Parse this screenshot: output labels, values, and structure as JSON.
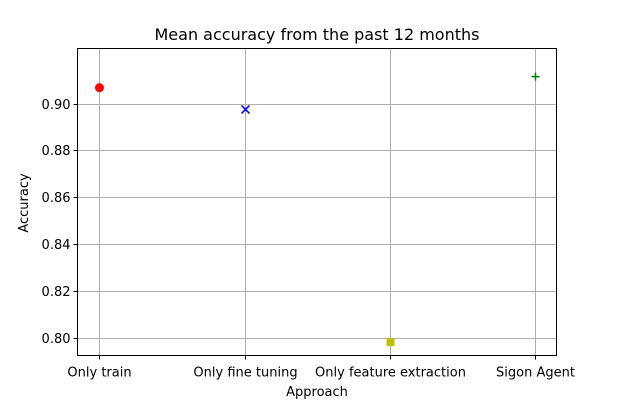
{
  "chart_data": {
    "type": "scatter",
    "title": "Mean accuracy from the past 12 months",
    "xlabel": "Approach",
    "ylabel": "Accuracy",
    "categories": [
      "Only train",
      "Only fine tuning",
      "Only feature extraction",
      "Sigon Agent"
    ],
    "ylim": [
      0.7925,
      0.9235
    ],
    "yticks": [
      0.8,
      0.82,
      0.84,
      0.86,
      0.88,
      0.9
    ],
    "ytick_labels": [
      "0.80",
      "0.82",
      "0.84",
      "0.86",
      "0.88",
      "0.90"
    ],
    "grid": true,
    "points": [
      {
        "category": "Only train",
        "value": 0.9068,
        "marker": "circle",
        "color": "#ff0000"
      },
      {
        "category": "Only fine tuning",
        "value": 0.8975,
        "marker": "x",
        "color": "#0000ff"
      },
      {
        "category": "Only feature extraction",
        "value": 0.7982,
        "marker": "square",
        "color": "#bfbf00"
      },
      {
        "category": "Sigon Agent",
        "value": 0.9115,
        "marker": "plus",
        "color": "#008000"
      }
    ]
  }
}
